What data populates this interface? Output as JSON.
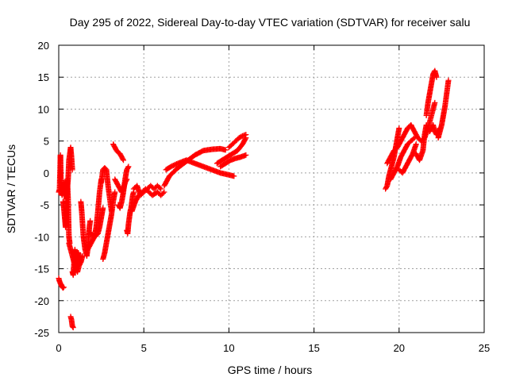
{
  "chart_data": {
    "type": "scatter",
    "title": "Day 295 of 2022, Sidereal Day-to-day VTEC variation (SDTVAR) for receiver salu",
    "xlabel": "GPS time / hours",
    "ylabel": "SDTVAR / TECUs",
    "xlim": [
      0,
      25
    ],
    "ylim": [
      -25,
      20
    ],
    "x_ticks": [
      0,
      5,
      10,
      15,
      20,
      25
    ],
    "y_ticks": [
      -25,
      -20,
      -15,
      -10,
      -5,
      0,
      5,
      10,
      15,
      20
    ],
    "grid": true,
    "marker": "+",
    "color": "#ff0000",
    "series": [
      {
        "name": "SDTVAR",
        "segments": [
          {
            "x": [
              0.0,
              0.05,
              0.1,
              0.15,
              0.2,
              0.25,
              0.3
            ],
            "y": [
              -16.5,
              -17.0,
              -17.3,
              -17.6,
              -17.8,
              -18.0,
              -17.9
            ]
          },
          {
            "x": [
              0.0,
              0.05,
              0.1,
              0.15,
              0.2,
              0.25,
              0.3,
              0.35,
              0.4,
              0.45,
              0.5,
              0.55,
              0.6,
              0.65,
              0.7,
              0.75,
              0.8
            ],
            "y": [
              -3.0,
              -2.5,
              2.8,
              -3.0,
              -3.5,
              -2.8,
              -1.5,
              -2.5,
              -3.2,
              -4.0,
              -2.5,
              -1.0,
              2.0,
              3.0,
              4.0,
              2.5,
              0.5
            ]
          },
          {
            "x": [
              0.25,
              0.3,
              0.35,
              0.4,
              0.45,
              0.5,
              0.55,
              0.6,
              0.65
            ],
            "y": [
              -4.5,
              -5.5,
              -7.0,
              -8.5,
              -3.5,
              -1.0,
              -4.0,
              -10.0,
              -11.0
            ]
          },
          {
            "x": [
              0.7,
              0.75,
              0.8,
              0.85
            ],
            "y": [
              -22.5,
              -23.0,
              -24.0,
              -24.2
            ]
          },
          {
            "x": [
              0.6,
              0.7,
              0.8,
              0.9,
              1.0,
              1.1,
              1.2,
              1.3,
              1.35,
              1.4
            ],
            "y": [
              -11.0,
              -12.0,
              -13.0,
              -14.0,
              -15.0,
              -15.5,
              -14.5,
              -14.0,
              -13.5,
              -13.0
            ]
          },
          {
            "x": [
              0.8,
              0.85,
              0.9,
              0.95,
              1.0,
              1.05,
              1.1,
              1.15,
              1.2,
              1.25
            ],
            "y": [
              -15.5,
              -16.0,
              -14.0,
              -12.0,
              -13.5,
              -15.0,
              -14.0,
              -12.5,
              -13.0,
              -14.0
            ]
          },
          {
            "x": [
              1.3,
              1.35,
              1.4,
              1.45,
              1.5,
              1.55,
              1.6,
              1.65,
              1.7,
              1.75,
              1.8,
              1.85
            ],
            "y": [
              -4.5,
              -6.0,
              -8.0,
              -10.0,
              -11.0,
              -12.0,
              -12.5,
              -13.0,
              -12.0,
              -10.0,
              -8.5,
              -7.5
            ]
          },
          {
            "x": [
              1.85,
              1.9,
              2.0,
              2.1,
              2.2,
              2.3,
              2.4,
              2.5,
              2.6
            ],
            "y": [
              -9.5,
              -9.5,
              -9.8,
              -10.0,
              -9.8,
              -9.5,
              -8.5,
              -7.0,
              -5.5
            ]
          },
          {
            "x": [
              1.7,
              1.8,
              1.9,
              2.0,
              2.1,
              2.2,
              2.3,
              2.4,
              2.5
            ],
            "y": [
              -12.0,
              -11.5,
              -11.0,
              -10.5,
              -10.0,
              -8.5,
              -6.0,
              -3.0,
              -1.0
            ]
          },
          {
            "x": [
              2.5,
              2.6,
              2.7,
              2.8,
              2.9,
              3.0,
              3.1
            ],
            "y": [
              -1.5,
              0.5,
              0.8,
              0.5,
              -2.0,
              -4.0,
              -6.0
            ]
          },
          {
            "x": [
              2.6,
              2.7,
              2.8,
              2.9,
              3.0,
              3.1,
              3.2,
              3.3
            ],
            "y": [
              -13.5,
              -12.5,
              -11.0,
              -9.5,
              -8.0,
              -6.5,
              -4.5,
              -3.0
            ]
          },
          {
            "x": [
              3.2,
              3.3,
              3.4,
              3.5,
              3.6,
              3.7,
              3.8
            ],
            "y": [
              4.5,
              4.0,
              3.5,
              3.2,
              3.0,
              2.5,
              2.0
            ]
          },
          {
            "x": [
              3.3,
              3.4,
              3.5,
              3.6,
              3.7,
              3.8,
              3.9,
              4.0
            ],
            "y": [
              -1.0,
              -1.5,
              -2.0,
              -2.5,
              -3.0,
              -2.5,
              -1.5,
              -1.0
            ]
          },
          {
            "x": [
              3.5,
              3.6,
              3.7,
              3.8,
              3.9,
              4.0,
              4.1
            ],
            "y": [
              -5.0,
              -5.5,
              -4.5,
              -3.0,
              -1.0,
              0.5,
              1.0
            ]
          },
          {
            "x": [
              4.0,
              4.05,
              4.1,
              4.15,
              4.2,
              4.25,
              4.3,
              4.35,
              4.4
            ],
            "y": [
              -9.0,
              -9.5,
              -8.0,
              -7.0,
              -6.0,
              -5.5,
              -4.5,
              -3.5,
              -3.0
            ]
          },
          {
            "x": [
              4.3,
              4.5,
              4.7,
              4.9,
              5.1,
              5.3,
              5.5,
              5.8,
              6.0,
              6.2
            ],
            "y": [
              -6.0,
              -4.5,
              -3.5,
              -3.0,
              -2.5,
              -3.0,
              -3.5,
              -3.0,
              -3.5,
              -3.0
            ]
          },
          {
            "x": [
              4.4,
              4.6,
              4.8,
              5.0,
              5.2,
              5.4,
              5.6,
              5.8,
              6.0
            ],
            "y": [
              -2.5,
              -2.0,
              -3.5,
              -3.0,
              -2.5,
              -2.0,
              -2.5,
              -2.0,
              -2.5
            ]
          },
          {
            "x": [
              6.2,
              6.5,
              7.0,
              7.5,
              8.0,
              8.5,
              9.0,
              9.5,
              9.8
            ],
            "y": [
              -2.0,
              -0.5,
              0.8,
              1.8,
              2.8,
              3.5,
              3.7,
              3.8,
              3.6
            ]
          },
          {
            "x": [
              6.3,
              6.6,
              7.0,
              7.5,
              8.0,
              8.5,
              9.0,
              9.5,
              10.0,
              10.3
            ],
            "y": [
              0.5,
              1.0,
              1.5,
              2.0,
              1.5,
              1.0,
              0.5,
              0.0,
              -0.3,
              -0.5
            ]
          },
          {
            "x": [
              9.3,
              9.6,
              9.9,
              10.2,
              10.5,
              10.8,
              11.0
            ],
            "y": [
              1.5,
              2.0,
              2.5,
              3.0,
              3.5,
              4.5,
              5.5
            ]
          },
          {
            "x": [
              9.5,
              9.8,
              10.1,
              10.4,
              10.7,
              11.0
            ],
            "y": [
              1.0,
              1.5,
              2.0,
              2.3,
              2.5,
              2.8
            ]
          },
          {
            "x": [
              10.0,
              10.2,
              10.4,
              10.6,
              10.8,
              11.0
            ],
            "y": [
              4.0,
              4.5,
              5.0,
              5.5,
              5.8,
              6.0
            ]
          },
          {
            "x": [
              19.2,
              19.3,
              19.4,
              19.5,
              19.6,
              19.7,
              19.8,
              19.9,
              20.0
            ],
            "y": [
              -2.5,
              -2.0,
              -0.5,
              0.5,
              1.5,
              2.5,
              4.0,
              5.5,
              7.0
            ]
          },
          {
            "x": [
              19.3,
              19.5,
              19.7,
              19.9,
              20.1,
              20.3,
              20.5,
              20.7
            ],
            "y": [
              1.5,
              2.5,
              3.5,
              4.0,
              5.0,
              6.0,
              7.0,
              7.5
            ]
          },
          {
            "x": [
              19.5,
              19.7,
              19.9,
              20.1,
              20.3,
              20.5,
              20.7,
              20.9
            ],
            "y": [
              -1.0,
              0.0,
              1.0,
              2.5,
              3.5,
              4.5,
              5.0,
              5.5
            ]
          },
          {
            "x": [
              20.0,
              20.2,
              20.4,
              20.6,
              20.8,
              21.0
            ],
            "y": [
              0.5,
              0.0,
              1.0,
              2.0,
              3.0,
              4.5
            ]
          },
          {
            "x": [
              20.5,
              20.7,
              20.9,
              21.1,
              21.3,
              21.5,
              21.7,
              21.9,
              22.1
            ],
            "y": [
              7.0,
              7.5,
              6.5,
              5.5,
              5.0,
              5.5,
              7.0,
              9.0,
              11.0
            ]
          },
          {
            "x": [
              21.0,
              21.2,
              21.4,
              21.5,
              21.6
            ],
            "y": [
              3.0,
              2.0,
              3.5,
              6.0,
              7.5
            ]
          },
          {
            "x": [
              21.6,
              21.7,
              21.8,
              21.9,
              22.0,
              22.1,
              22.2
            ],
            "y": [
              9.0,
              11.0,
              12.5,
              14.0,
              15.5,
              16.0,
              15.0
            ]
          },
          {
            "x": [
              21.8,
              21.9,
              22.0,
              22.1,
              22.2,
              22.3,
              22.4
            ],
            "y": [
              6.5,
              7.0,
              7.5,
              6.5,
              6.0,
              6.5,
              7.0
            ]
          },
          {
            "x": [
              22.3,
              22.4,
              22.5,
              22.6,
              22.7,
              22.8,
              22.9
            ],
            "y": [
              5.5,
              6.5,
              7.5,
              9.0,
              10.5,
              12.5,
              14.5
            ]
          }
        ]
      }
    ]
  }
}
